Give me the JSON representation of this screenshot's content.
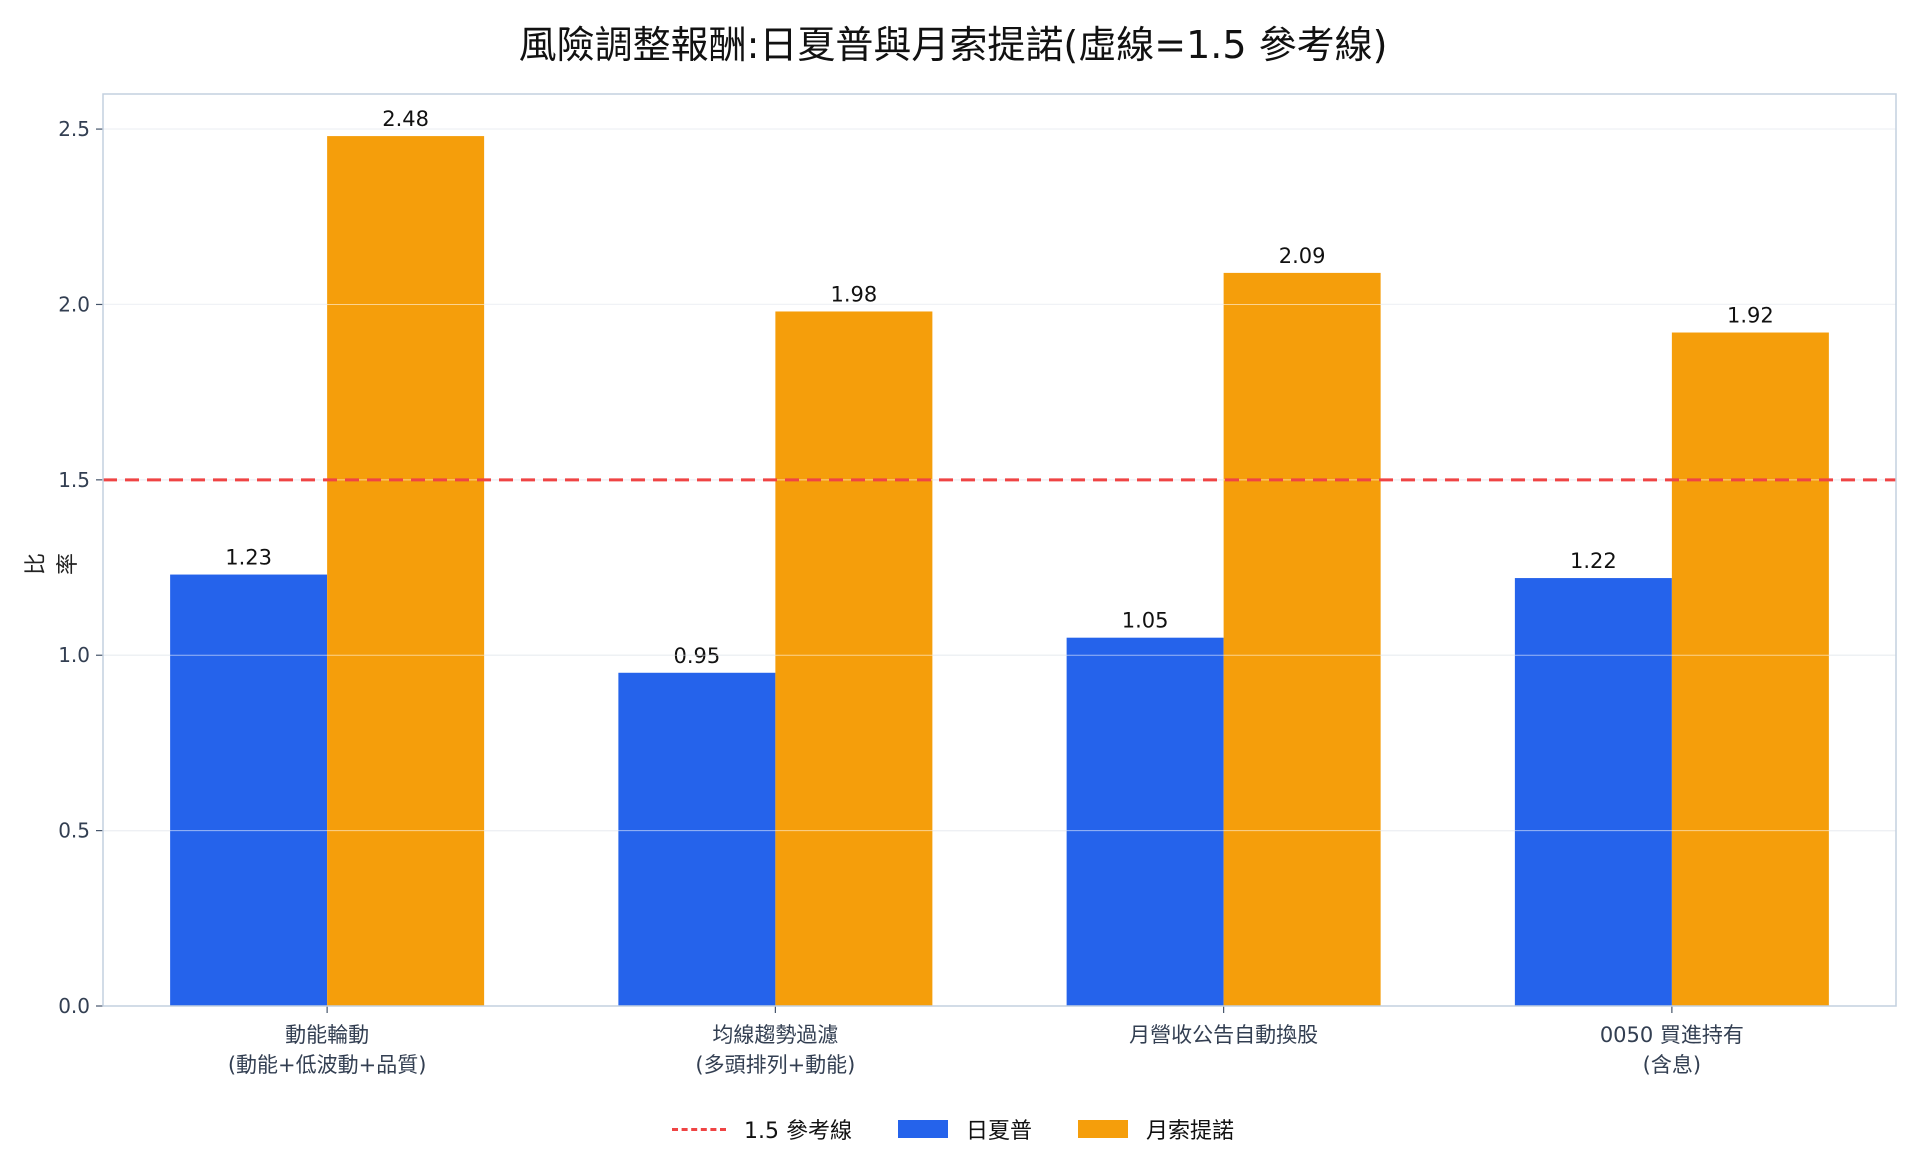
{
  "chart_data": {
    "type": "bar",
    "title": "風險調整報酬:日夏普與月索提諾(虛線=1.5 參考線)",
    "ylabel": "比率",
    "xlabel": "",
    "ylim": [
      0,
      2.6
    ],
    "yticks": [
      "0.0",
      "0.5",
      "1.0",
      "1.5",
      "2.0",
      "2.5"
    ],
    "grid": true,
    "legend_position": "bottom",
    "categories": [
      [
        "動能輪動",
        "(動能+低波動+品質)"
      ],
      [
        "均線趨勢過濾",
        "(多頭排列+動能)"
      ],
      [
        "月營收公告自動換股"
      ],
      [
        "0050 買進持有",
        "(含息)"
      ]
    ],
    "series": [
      {
        "name": "日夏普",
        "color": "#2563eb",
        "values": [
          1.23,
          0.95,
          1.05,
          1.22
        ]
      },
      {
        "name": "月索提諾",
        "color": "#f59e0b",
        "values": [
          2.48,
          1.98,
          2.09,
          1.92
        ]
      }
    ],
    "reference_line": {
      "value": 1.5,
      "label": "1.5 參考線",
      "color": "#ef4444"
    }
  }
}
